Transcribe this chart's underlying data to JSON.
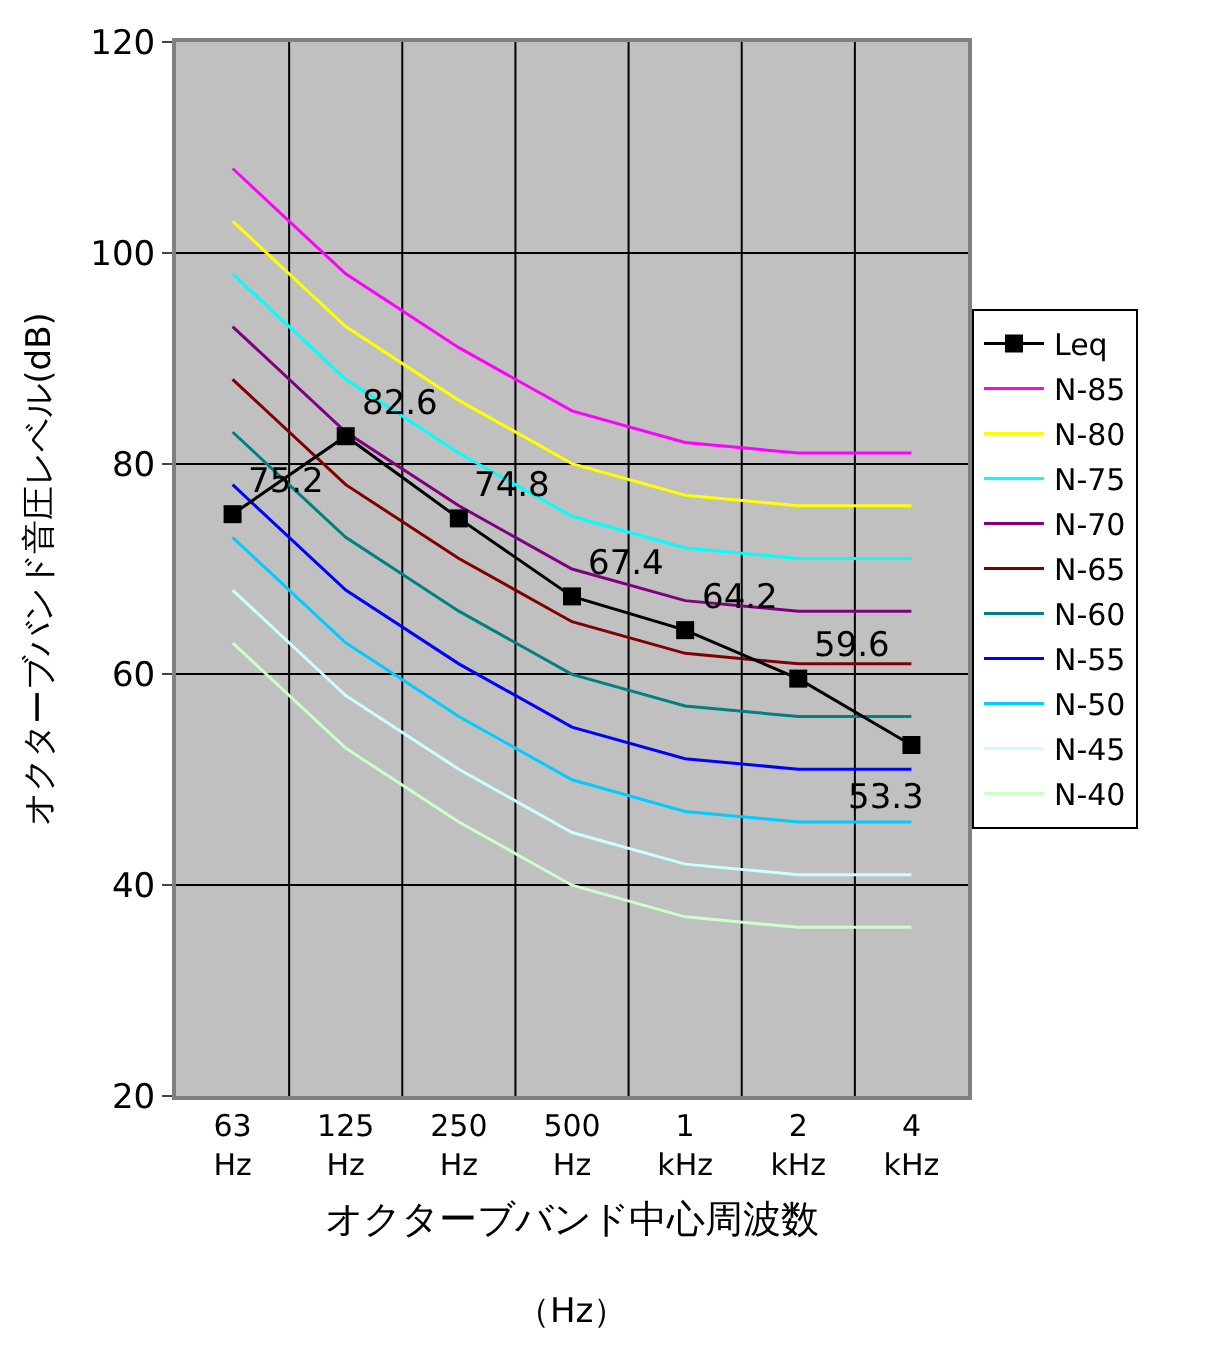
{
  "chart_data": {
    "type": "line",
    "xlabel": "オクターブバンド中心周波数",
    "annotations": [
      "（Hz）"
    ],
    "ylabel": "オクターブバンド音圧レベル(dB)",
    "categories": [
      "63 Hz",
      "125 Hz",
      "250 Hz",
      "500 Hz",
      "1 kHz",
      "2 kHz",
      "4 kHz"
    ],
    "ylim": [
      20,
      120
    ],
    "yticks": [
      20,
      40,
      60,
      80,
      100,
      120
    ],
    "grid": true,
    "legend": "right",
    "series": [
      {
        "name": "Leq",
        "color": "#000000",
        "values": [
          75.2,
          82.6,
          74.8,
          67.4,
          64.2,
          59.6,
          53.3
        ],
        "marker": "square",
        "value_labels": [
          "75.2",
          "82.6",
          "74.8",
          "67.4",
          "64.2",
          "59.6",
          "53.3"
        ]
      },
      {
        "name": "N-85",
        "color": "#ff00ff",
        "values": [
          108,
          98,
          91,
          85,
          82,
          81,
          81
        ],
        "marker": "none"
      },
      {
        "name": "N-80",
        "color": "#ffff00",
        "values": [
          103,
          93,
          86,
          80,
          77,
          76,
          76
        ],
        "marker": "none"
      },
      {
        "name": "N-75",
        "color": "#00ffff",
        "values": [
          98,
          88,
          81,
          75,
          72,
          71,
          71
        ],
        "marker": "none"
      },
      {
        "name": "N-70",
        "color": "#800080",
        "values": [
          93,
          83,
          76,
          70,
          67,
          66,
          66
        ],
        "marker": "none"
      },
      {
        "name": "N-65",
        "color": "#800000",
        "values": [
          88,
          78,
          71,
          65,
          62,
          61,
          61
        ],
        "marker": "none"
      },
      {
        "name": "N-60",
        "color": "#008080",
        "values": [
          83,
          73,
          66,
          60,
          57,
          56,
          56
        ],
        "marker": "none"
      },
      {
        "name": "N-55",
        "color": "#0000ff",
        "values": [
          78,
          68,
          61,
          55,
          52,
          51,
          51
        ],
        "marker": "none"
      },
      {
        "name": "N-50",
        "color": "#00ccff",
        "values": [
          73,
          63,
          56,
          50,
          47,
          46,
          46
        ],
        "marker": "none"
      },
      {
        "name": "N-45",
        "color": "#ccffff",
        "values": [
          68,
          58,
          51,
          45,
          42,
          41,
          41
        ],
        "marker": "none"
      },
      {
        "name": "N-40",
        "color": "#ccffcc",
        "values": [
          63,
          53,
          46,
          40,
          37,
          36,
          36
        ],
        "marker": "none"
      }
    ]
  }
}
